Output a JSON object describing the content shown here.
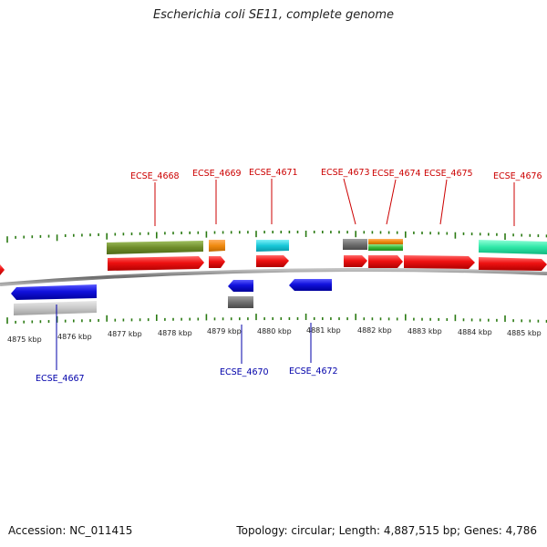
{
  "title": "Escherichia coli SE11, complete genome",
  "footer": {
    "accession": "Accession: NC_011415",
    "summary": "Topology: circular; Length: 4,887,515 bp; Genes: 4,786"
  },
  "colors": {
    "forward_cds": "#ee1111",
    "reverse_cds": "#1111dd",
    "forward_label": "#cc0000",
    "reverse_label": "#0000aa",
    "tick": "#2a7a12",
    "backbone": "#808080"
  },
  "axis_ticks": [
    "4875 kbp",
    "4876 kbp",
    "4877 kbp",
    "4878 kbp",
    "4879 kbp",
    "4880 kbp",
    "4881 kbp",
    "4882 kbp",
    "4883 kbp",
    "4884 kbp",
    "4885 kbp"
  ],
  "genes_top": [
    {
      "label": "ECSE_4668"
    },
    {
      "label": "ECSE_4669"
    },
    {
      "label": "ECSE_4671"
    },
    {
      "label": "ECSE_4673"
    },
    {
      "label": "ECSE_4674"
    },
    {
      "label": "ECSE_4675"
    },
    {
      "label": "ECSE_4676"
    }
  ],
  "genes_bottom": [
    {
      "label": "ECSE_4667"
    },
    {
      "label": "ECSE_4670"
    },
    {
      "label": "ECSE_4672"
    }
  ]
}
